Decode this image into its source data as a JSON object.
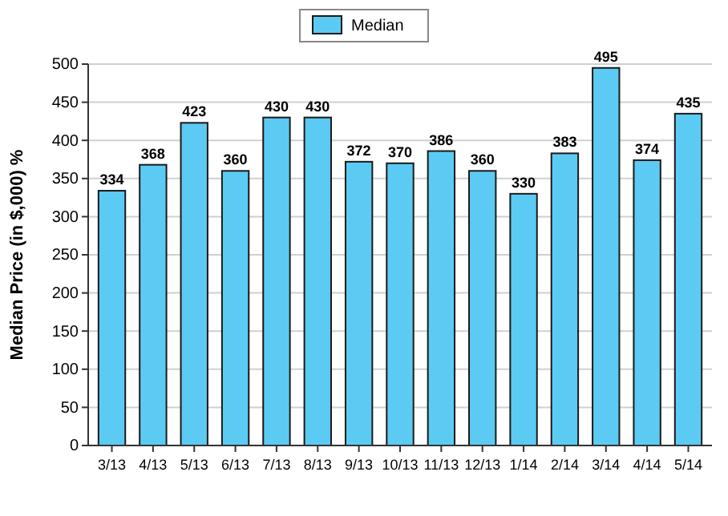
{
  "chart_data": {
    "type": "bar",
    "ylabel": "Median Price (in $,000) %",
    "categories": [
      "3/13",
      "4/13",
      "5/13",
      "6/13",
      "7/13",
      "8/13",
      "9/13",
      "10/13",
      "11/13",
      "12/13",
      "1/14",
      "2/14",
      "3/14",
      "4/14",
      "5/14"
    ],
    "series": [
      {
        "name": "Median",
        "color": "#5ccbf3",
        "values": [
          334,
          368,
          423,
          360,
          430,
          430,
          372,
          370,
          386,
          360,
          330,
          383,
          495,
          374,
          435
        ]
      }
    ],
    "ylim": [
      0,
      500
    ],
    "yticks": [
      0,
      50,
      100,
      150,
      200,
      250,
      300,
      350,
      400,
      450,
      500
    ],
    "grid": "y",
    "legend": "top",
    "data_labels": true
  }
}
